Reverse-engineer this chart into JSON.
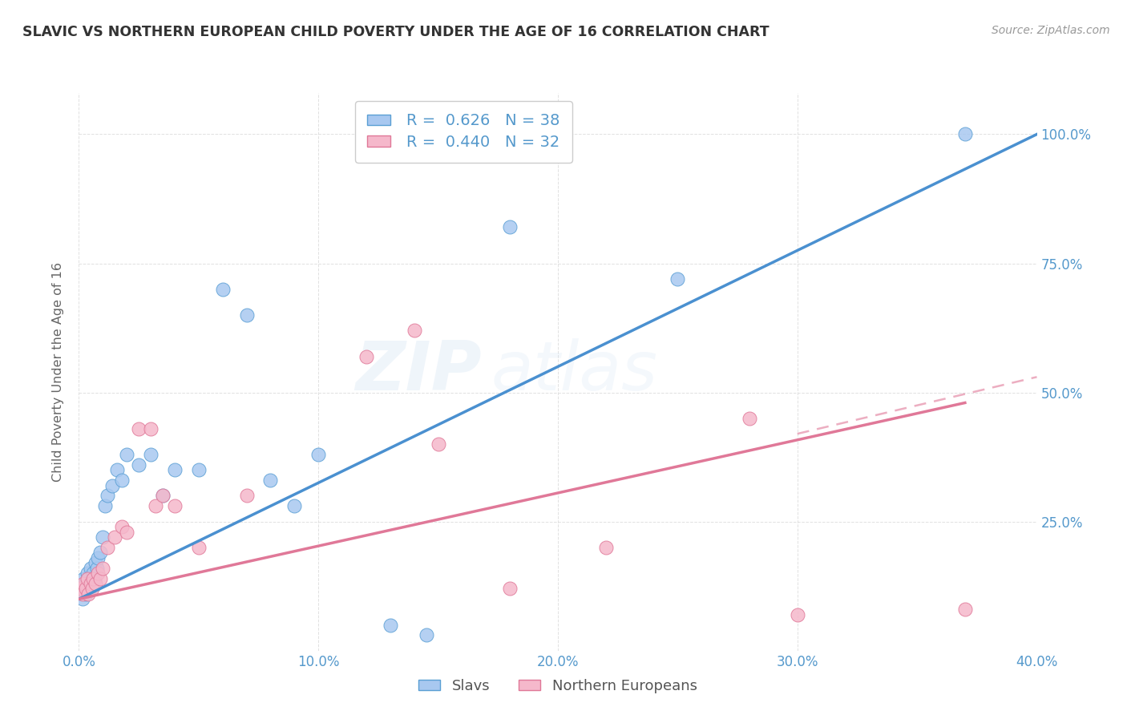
{
  "title": "SLAVIC VS NORTHERN EUROPEAN CHILD POVERTY UNDER THE AGE OF 16 CORRELATION CHART",
  "source": "Source: ZipAtlas.com",
  "ylabel": "Child Poverty Under the Age of 16",
  "xlim": [
    0.0,
    40.0
  ],
  "ylim": [
    0.0,
    108.0
  ],
  "slavs_R": "0.626",
  "slavs_N": "38",
  "northern_R": "0.440",
  "northern_N": "32",
  "slavs_color": "#A8C8F0",
  "northern_color": "#F5B8CB",
  "slavs_edge_color": "#5A9FD4",
  "northern_edge_color": "#E07898",
  "slavs_line_color": "#4A90D0",
  "northern_line_color": "#E07898",
  "background_color": "#FFFFFF",
  "grid_color": "#DDDDDD",
  "title_color": "#333333",
  "axis_label_color": "#5599CC",
  "watermark_color": "#C8DCF0",
  "watermark_text": "ZIPAtlas",
  "slavs_x": [
    0.1,
    0.15,
    0.2,
    0.25,
    0.3,
    0.35,
    0.4,
    0.45,
    0.5,
    0.55,
    0.6,
    0.65,
    0.7,
    0.75,
    0.8,
    0.9,
    1.0,
    1.1,
    1.2,
    1.4,
    1.6,
    1.8,
    2.0,
    2.5,
    3.0,
    3.5,
    4.0,
    5.0,
    6.0,
    7.0,
    8.0,
    9.0,
    10.0,
    13.0,
    14.5,
    18.0,
    25.0,
    37.0
  ],
  "slavs_y": [
    12.0,
    10.0,
    14.0,
    13.0,
    11.0,
    15.0,
    14.0,
    12.0,
    16.0,
    13.0,
    15.0,
    14.0,
    17.0,
    16.0,
    18.0,
    19.0,
    22.0,
    28.0,
    30.0,
    32.0,
    35.0,
    33.0,
    38.0,
    36.0,
    38.0,
    30.0,
    35.0,
    35.0,
    70.0,
    65.0,
    33.0,
    28.0,
    38.0,
    5.0,
    3.0,
    82.0,
    72.0,
    100.0
  ],
  "northern_x": [
    0.1,
    0.15,
    0.2,
    0.3,
    0.35,
    0.4,
    0.5,
    0.55,
    0.6,
    0.7,
    0.8,
    0.9,
    1.0,
    1.2,
    1.5,
    1.8,
    2.0,
    2.5,
    3.0,
    3.2,
    3.5,
    4.0,
    5.0,
    7.0,
    12.0,
    14.0,
    15.0,
    18.0,
    22.0,
    28.0,
    30.0,
    37.0
  ],
  "northern_y": [
    12.0,
    11.0,
    13.0,
    12.0,
    14.0,
    11.0,
    13.0,
    12.0,
    14.0,
    13.0,
    15.0,
    14.0,
    16.0,
    20.0,
    22.0,
    24.0,
    23.0,
    43.0,
    43.0,
    28.0,
    30.0,
    28.0,
    20.0,
    30.0,
    57.0,
    62.0,
    40.0,
    12.0,
    20.0,
    45.0,
    7.0,
    8.0
  ],
  "slavs_line_x0": 0.0,
  "slavs_line_y0": 10.0,
  "slavs_line_x1": 40.0,
  "slavs_line_y1": 100.0,
  "northern_line_x0": 0.0,
  "northern_line_y0": 10.0,
  "northern_line_x1": 37.0,
  "northern_line_y1": 48.0,
  "northern_dash_x0": 30.0,
  "northern_dash_x1": 40.0,
  "northern_dash_y0": 42.0,
  "northern_dash_y1": 53.0
}
